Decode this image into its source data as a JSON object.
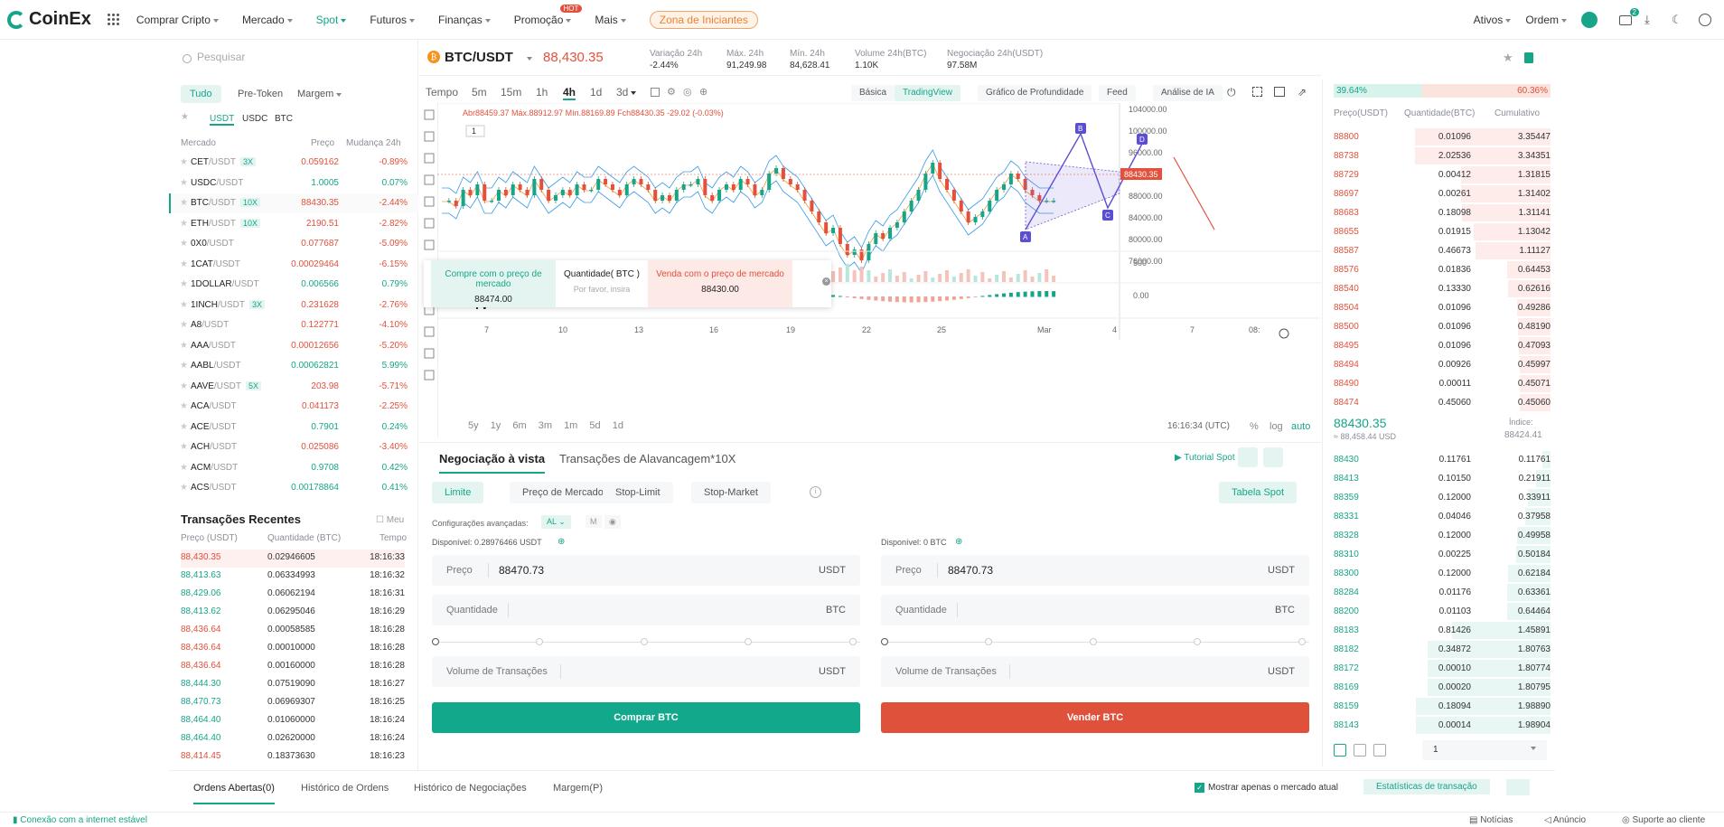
{
  "brand": {
    "name": "CoinEx"
  },
  "nav": [
    {
      "label": "Comprar Cripto"
    },
    {
      "label": "Mercado"
    },
    {
      "label": "Spot"
    },
    {
      "label": "Futuros"
    },
    {
      "label": "Finanças"
    },
    {
      "label": "Promoção"
    },
    {
      "label": "Mais"
    }
  ],
  "nav_hot": "HOT",
  "nav_zone": "Zona de Iniciantes",
  "right_nav": {
    "assets": "Ativos",
    "orders": "Ordem",
    "badge": "2"
  },
  "market": {
    "search_placeholder": "Pesquisar",
    "filters": [
      "Tudo",
      "Pre-Token",
      "Margem"
    ],
    "quotes": [
      "USDT",
      "USDC",
      "BTC"
    ],
    "headers": {
      "market": "Mercado",
      "price": "Preço",
      "change": "Mudança 24h"
    },
    "rows": [
      {
        "base": "CET",
        "quote": "/USDT",
        "lev": "3X",
        "price": "0.059162",
        "change": "-0.89%",
        "dir": "down"
      },
      {
        "base": "USDC",
        "quote": "/USDT",
        "lev": "",
        "price": "1.0005",
        "change": "0.07%",
        "dir": "up"
      },
      {
        "base": "BTC",
        "quote": "/USDT",
        "lev": "10X",
        "price": "88430.35",
        "change": "-2.44%",
        "dir": "down"
      },
      {
        "base": "ETH",
        "quote": "/USDT",
        "lev": "10X",
        "price": "2190.51",
        "change": "-2.82%",
        "dir": "down"
      },
      {
        "base": "0X0",
        "quote": "/USDT",
        "lev": "",
        "price": "0.077687",
        "change": "-5.09%",
        "dir": "down"
      },
      {
        "base": "1CAT",
        "quote": "/USDT",
        "lev": "",
        "price": "0.00029464",
        "change": "-6.15%",
        "dir": "down"
      },
      {
        "base": "1DOLLAR",
        "quote": "/USDT",
        "lev": "",
        "price": "0.006566",
        "change": "0.79%",
        "dir": "up"
      },
      {
        "base": "1INCH",
        "quote": "/USDT",
        "lev": "3X",
        "price": "0.231628",
        "change": "-2.76%",
        "dir": "down"
      },
      {
        "base": "A8",
        "quote": "/USDT",
        "lev": "",
        "price": "0.122771",
        "change": "-4.10%",
        "dir": "down"
      },
      {
        "base": "AAA",
        "quote": "/USDT",
        "lev": "",
        "price": "0.00012656",
        "change": "-5.20%",
        "dir": "down"
      },
      {
        "base": "AABL",
        "quote": "/USDT",
        "lev": "",
        "price": "0.00062821",
        "change": "5.99%",
        "dir": "up"
      },
      {
        "base": "AAVE",
        "quote": "/USDT",
        "lev": "5X",
        "price": "203.98",
        "change": "-5.71%",
        "dir": "down"
      },
      {
        "base": "ACA",
        "quote": "/USDT",
        "lev": "",
        "price": "0.041173",
        "change": "-2.25%",
        "dir": "down"
      },
      {
        "base": "ACE",
        "quote": "/USDT",
        "lev": "",
        "price": "0.7901",
        "change": "0.24%",
        "dir": "up"
      },
      {
        "base": "ACH",
        "quote": "/USDT",
        "lev": "",
        "price": "0.025086",
        "change": "-3.40%",
        "dir": "down"
      },
      {
        "base": "ACM",
        "quote": "/USDT",
        "lev": "",
        "price": "0.9708",
        "change": "0.42%",
        "dir": "up"
      },
      {
        "base": "ACS",
        "quote": "/USDT",
        "lev": "",
        "price": "0.00178864",
        "change": "0.41%",
        "dir": "up"
      }
    ]
  },
  "recent_trades": {
    "title": "Transações Recentes",
    "mine": "Meu",
    "headers": {
      "price": "Preço (USDT)",
      "qty": "Quantidade (BTC)",
      "time": "Tempo"
    },
    "rows": [
      {
        "price": "88,430.35",
        "qty": "0.02946605",
        "time": "18:16:33",
        "dir": "down"
      },
      {
        "price": "88,413.63",
        "qty": "0.06334993",
        "time": "18:16:32",
        "dir": "up"
      },
      {
        "price": "88,429.06",
        "qty": "0.06062194",
        "time": "18:16:31",
        "dir": "up"
      },
      {
        "price": "88,413.62",
        "qty": "0.06295046",
        "time": "18:16:29",
        "dir": "up"
      },
      {
        "price": "88,436.64",
        "qty": "0.00058585",
        "time": "18:16:28",
        "dir": "down"
      },
      {
        "price": "88,436.64",
        "qty": "0.00010000",
        "time": "18:16:28",
        "dir": "down"
      },
      {
        "price": "88,436.64",
        "qty": "0.00160000",
        "time": "18:16:28",
        "dir": "down"
      },
      {
        "price": "88,444.30",
        "qty": "0.07519090",
        "time": "18:16:27",
        "dir": "up"
      },
      {
        "price": "88,470.73",
        "qty": "0.06969307",
        "time": "18:16:25",
        "dir": "up"
      },
      {
        "price": "88,464.40",
        "qty": "0.01060000",
        "time": "18:16:24",
        "dir": "up"
      },
      {
        "price": "88,464.40",
        "qty": "0.02620000",
        "time": "18:16:24",
        "dir": "up"
      },
      {
        "price": "88,414.45",
        "qty": "0.18373630",
        "time": "18:16:23",
        "dir": "down"
      }
    ]
  },
  "pair": {
    "symbol": "BTC/USDT",
    "price": "88,430.35",
    "stats": [
      {
        "label": "Variação 24h",
        "value": "-2.44%",
        "dir": "down"
      },
      {
        "label": "Máx. 24h",
        "value": "91,249.98",
        "dir": ""
      },
      {
        "label": "Mín. 24h",
        "value": "84,628.41",
        "dir": ""
      },
      {
        "label": "Volume 24h(BTC)",
        "value": "1.10K",
        "dir": ""
      },
      {
        "label": "Negociação 24h(USDT)",
        "value": "97.58M",
        "dir": ""
      }
    ]
  },
  "timeframes": [
    "Tempo",
    "5m",
    "15m",
    "1h",
    "4h",
    "1d",
    "3d"
  ],
  "view_tabs": [
    "Básica",
    "TradingView",
    "Gráfico de Profundidade",
    "Feed",
    "Análise de IA"
  ],
  "chart": {
    "ohlc": "Abr88459.37 Máx.88912.97 Mín.88169.89 Fch88430.35 -29.02 (-0.03%)",
    "last_label": "88430.35",
    "y_ticks": [
      "104000.00",
      "100000.00",
      "96000.00",
      "92000.00",
      "88000.00",
      "84000.00",
      "80000.00",
      "76000.00"
    ],
    "vol_tick": "500",
    "macd_tick": "0.00",
    "x_ticks": [
      "7",
      "10",
      "13",
      "16",
      "19",
      "22",
      "25",
      "Mar",
      "4",
      "7",
      "08:"
    ],
    "ranges": [
      "5y",
      "1y",
      "6m",
      "3m",
      "1m",
      "5d",
      "1d"
    ],
    "clock": "16:16:34 (UTC)",
    "pct": "%",
    "log": "log",
    "auto": "auto",
    "pattern_labels": [
      "A",
      "B",
      "C",
      "D"
    ],
    "one": "1"
  },
  "quick_trade": {
    "buy_label": "Compre com o preço de mercado",
    "buy_price": "88474.00",
    "qty_label": "Quantidade( BTC )",
    "qty_placeholder": "Por favor, insira",
    "sell_label": "Venda com o preço de mercado",
    "sell_price": "88430.00"
  },
  "order_form": {
    "tabs": [
      "Negociação à vista",
      "Transações de Alavancagem*10X"
    ],
    "tutorial": "Tutorial Spot",
    "types": [
      "Limite",
      "Preço de Mercado",
      "Stop-Limit",
      "Stop-Market"
    ],
    "table": "Tabela Spot",
    "advanced": "Configurações avançadas:",
    "al": "AL",
    "m": "M",
    "buy": {
      "available": "Disponível: 0.28976466 USDT",
      "price_label": "Preço",
      "price": "88470.73",
      "price_unit": "USDT",
      "qty_label": "Quantidade",
      "qty_unit": "BTC",
      "vol_label": "Volume de Transações",
      "vol_unit": "USDT",
      "button": "Comprar BTC"
    },
    "sell": {
      "available": "Disponível: 0 BTC",
      "price_label": "Preço",
      "price": "88470.73",
      "price_unit": "USDT",
      "qty_label": "Quantidade",
      "qty_unit": "BTC",
      "vol_label": "Volume de Transações",
      "vol_unit": "USDT",
      "button": "Vender BTC"
    }
  },
  "orderbook": {
    "ratio_buy": "39.64%",
    "ratio_sell": "60.36%",
    "headers": {
      "price": "Preço(USDT)",
      "qty": "Quantidade(BTC)",
      "cum": "Cumulativo"
    },
    "asks": [
      {
        "p": "88800",
        "q": "0.01096",
        "c": "3.35447"
      },
      {
        "p": "88738",
        "q": "2.02536",
        "c": "3.34351"
      },
      {
        "p": "88729",
        "q": "0.00412",
        "c": "1.31815"
      },
      {
        "p": "88697",
        "q": "0.00261",
        "c": "1.31402"
      },
      {
        "p": "88683",
        "q": "0.18098",
        "c": "1.31141"
      },
      {
        "p": "88655",
        "q": "0.01915",
        "c": "1.13042"
      },
      {
        "p": "88587",
        "q": "0.46673",
        "c": "1.11127"
      },
      {
        "p": "88576",
        "q": "0.01836",
        "c": "0.64453"
      },
      {
        "p": "88540",
        "q": "0.13330",
        "c": "0.62616"
      },
      {
        "p": "88504",
        "q": "0.01096",
        "c": "0.49286"
      },
      {
        "p": "88500",
        "q": "0.01096",
        "c": "0.48190"
      },
      {
        "p": "88495",
        "q": "0.01096",
        "c": "0.47093"
      },
      {
        "p": "88494",
        "q": "0.00926",
        "c": "0.45997"
      },
      {
        "p": "88490",
        "q": "0.00011",
        "c": "0.45071"
      },
      {
        "p": "88474",
        "q": "0.45060",
        "c": "0.45060"
      }
    ],
    "mid_price": "88430.35",
    "mid_usd": "≈ 88,458.44 USD",
    "index_label": "Índice:",
    "index": "88424.41",
    "bids": [
      {
        "p": "88430",
        "q": "0.11761",
        "c": "0.11761"
      },
      {
        "p": "88413",
        "q": "0.10150",
        "c": "0.21911"
      },
      {
        "p": "88359",
        "q": "0.12000",
        "c": "0.33911"
      },
      {
        "p": "88331",
        "q": "0.04046",
        "c": "0.37958"
      },
      {
        "p": "88328",
        "q": "0.12000",
        "c": "0.49958"
      },
      {
        "p": "88310",
        "q": "0.00225",
        "c": "0.50184"
      },
      {
        "p": "88300",
        "q": "0.12000",
        "c": "0.62184"
      },
      {
        "p": "88284",
        "q": "0.01176",
        "c": "0.63361"
      },
      {
        "p": "88200",
        "q": "0.01103",
        "c": "0.64464"
      },
      {
        "p": "88183",
        "q": "0.81426",
        "c": "1.45891"
      },
      {
        "p": "88182",
        "q": "0.34872",
        "c": "1.80763"
      },
      {
        "p": "88172",
        "q": "0.00010",
        "c": "1.80774"
      },
      {
        "p": "88169",
        "q": "0.00020",
        "c": "1.80795"
      },
      {
        "p": "88159",
        "q": "0.18094",
        "c": "1.98890"
      },
      {
        "p": "88143",
        "q": "0.00014",
        "c": "1.98904"
      }
    ],
    "precision": "1"
  },
  "bottom": {
    "tabs": [
      "Ordens Abertas(0)",
      "Histórico de Ordens",
      "Histórico de Negociações",
      "Margem(P)"
    ],
    "only_current": "Mostrar apenas o mercado atual",
    "stats": "Estatísticas de transação"
  },
  "footer": {
    "connection": "Conexão com a internet estável",
    "news": "Notícias",
    "announce": "Anúncio",
    "support": "Suporte ao cliente"
  },
  "colors": {
    "green": "#17a589",
    "red": "#e2513c",
    "accent": "#17a589"
  }
}
